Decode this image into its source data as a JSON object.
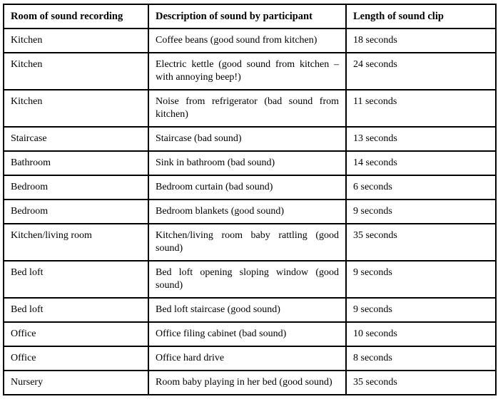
{
  "table": {
    "columns": [
      "Room of sound recording",
      "Description of sound by participant",
      "Length of sound clip"
    ],
    "rows": [
      {
        "room": "Kitchen",
        "description": "Coffee beans (good sound from kitchen)",
        "length": "18 seconds"
      },
      {
        "room": "Kitchen",
        "description": "Electric kettle (good sound from kitchen – with annoying beep!)",
        "length": "24 seconds"
      },
      {
        "room": "Kitchen",
        "description": "Noise from refrigerator (bad sound from kitchen)",
        "length": "11 seconds"
      },
      {
        "room": "Staircase",
        "description": "Staircase (bad sound)",
        "length": "13 seconds"
      },
      {
        "room": "Bathroom",
        "description": "Sink in bathroom (bad sound)",
        "length": "14 seconds"
      },
      {
        "room": "Bedroom",
        "description": "Bedroom curtain (bad sound)",
        "length": "6 seconds"
      },
      {
        "room": "Bedroom",
        "description": "Bedroom blankets (good sound)",
        "length": "9 seconds"
      },
      {
        "room": "Kitchen/living room",
        "description": "Kitchen/living room baby rattling (good sound)",
        "length": "35 seconds"
      },
      {
        "room": "Bed loft",
        "description": "Bed loft opening sloping window (good sound)",
        "length": "9 seconds"
      },
      {
        "room": "Bed loft",
        "description": "Bed loft staircase (good sound)",
        "length": "9 seconds"
      },
      {
        "room": "Office",
        "description": "Office filing cabinet (bad sound)",
        "length": "10 seconds"
      },
      {
        "room": "Office",
        "description": "Office hard drive",
        "length": "8 seconds"
      },
      {
        "room": "Nursery",
        "description": "Room baby playing in her bed (good sound)",
        "length": "35 seconds"
      }
    ]
  },
  "colors": {
    "border": "#000000",
    "text": "#000000",
    "background": "#ffffff"
  }
}
